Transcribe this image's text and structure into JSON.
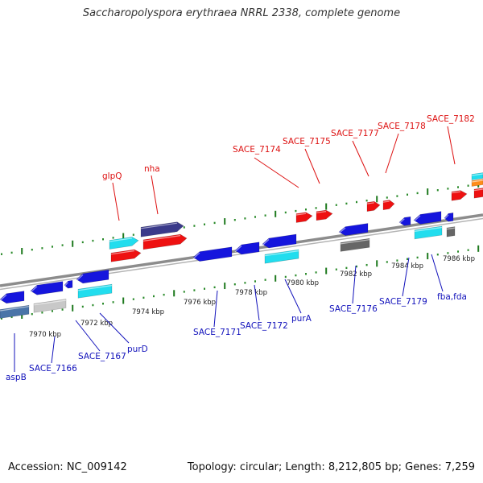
{
  "title": "Saccharopolyspora erythraea NRRL 2338, complete genome",
  "footer": {
    "accession": "Accession: NC_009142",
    "summary": "Topology: circular; Length: 8,212,805 bp; Genes: 7,259"
  },
  "colors": {
    "backbone": "#8c8c8c",
    "tick_major": "#1e7a1e",
    "tick_minor": "#2a8a2a",
    "label_top": "#dd1111",
    "label_bottom": "#1111bb",
    "kbp": "#222222",
    "red": "#ee1111",
    "blue": "#1515dd",
    "cyan": "#22ddee",
    "navy": "#3a3a8a",
    "gray": "#666666",
    "lightgray": "#c8c8c8",
    "steel": "#4a74a8",
    "orange": "#ff8c1a",
    "teal": "#22aabb"
  },
  "kbp_labels": [
    "7970 kbp",
    "7972 kbp",
    "7974 kbp",
    "7976 kbp",
    "7978 kbp",
    "7980 kbp",
    "7982 kbp",
    "7984 kbp",
    "7986 kbp"
  ],
  "labels_top": [
    "glpQ",
    "nha",
    "SACE_7174",
    "SACE_7175",
    "SACE_7177",
    "SACE_7178",
    "SACE_7182"
  ],
  "labels_bottom": [
    "aspB",
    "SACE_7166",
    "SACE_7167",
    "purD",
    "SACE_7171",
    "SACE_7172",
    "purA",
    "SACE_7176",
    "SACE_7179",
    "fba,fda"
  ]
}
